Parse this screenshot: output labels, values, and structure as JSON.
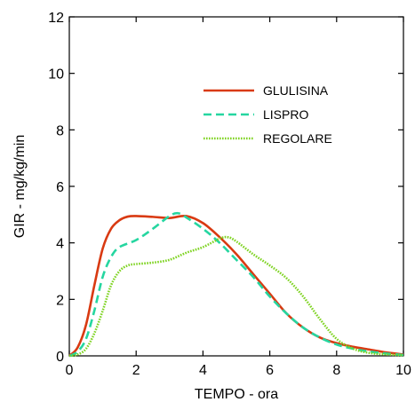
{
  "chart_data": {
    "type": "line",
    "xlabel": "TEMPO - ora",
    "ylabel": "GIR - mg/kg/min",
    "xlim": [
      0,
      10
    ],
    "ylim": [
      0,
      12
    ],
    "xticks": [
      0,
      2,
      4,
      6,
      8,
      10
    ],
    "yticks": [
      0,
      2,
      4,
      6,
      8,
      10,
      12
    ],
    "grid": false,
    "legend": {
      "position": "top-right"
    },
    "series": [
      {
        "name": "GLULISINA",
        "color": "#d93a12",
        "style": "solid",
        "x": [
          0,
          0.25,
          0.5,
          0.75,
          1,
          1.25,
          1.5,
          1.75,
          2,
          2.5,
          3,
          3.5,
          4,
          4.5,
          5,
          5.5,
          6,
          6.5,
          7,
          7.5,
          8,
          8.5,
          9,
          9.5,
          10
        ],
        "y": [
          0,
          0.3,
          1.1,
          2.5,
          3.8,
          4.5,
          4.8,
          4.93,
          4.95,
          4.92,
          4.88,
          4.95,
          4.7,
          4.2,
          3.6,
          2.9,
          2.2,
          1.5,
          1.0,
          0.65,
          0.45,
          0.32,
          0.22,
          0.12,
          0.05
        ]
      },
      {
        "name": "LISPRO",
        "color": "#25d6a0",
        "style": "dashed",
        "x": [
          0,
          0.25,
          0.5,
          0.75,
          1,
          1.25,
          1.5,
          2,
          2.5,
          3,
          3.25,
          3.5,
          4,
          4.5,
          5,
          5.5,
          6,
          6.5,
          7,
          7.5,
          8,
          8.5,
          9,
          9.5,
          10
        ],
        "y": [
          0,
          0.15,
          0.6,
          1.6,
          2.8,
          3.5,
          3.85,
          4.1,
          4.5,
          4.95,
          5.05,
          4.9,
          4.5,
          4.0,
          3.4,
          2.8,
          2.1,
          1.5,
          1.0,
          0.65,
          0.4,
          0.25,
          0.15,
          0.08,
          0.03
        ]
      },
      {
        "name": "REGOLARE",
        "color": "#7ed321",
        "style": "dotted",
        "x": [
          0,
          0.25,
          0.5,
          0.75,
          1,
          1.25,
          1.5,
          1.75,
          2,
          2.5,
          3,
          3.5,
          4,
          4.5,
          4.75,
          5,
          5.5,
          6,
          6.5,
          7,
          7.5,
          8,
          8.5,
          9,
          9.5,
          10
        ],
        "y": [
          0,
          0.05,
          0.25,
          0.8,
          1.6,
          2.5,
          3.0,
          3.2,
          3.25,
          3.3,
          3.4,
          3.65,
          3.85,
          4.15,
          4.2,
          4.05,
          3.6,
          3.2,
          2.75,
          2.1,
          1.3,
          0.6,
          0.25,
          0.1,
          0.05,
          0.02
        ]
      }
    ]
  }
}
